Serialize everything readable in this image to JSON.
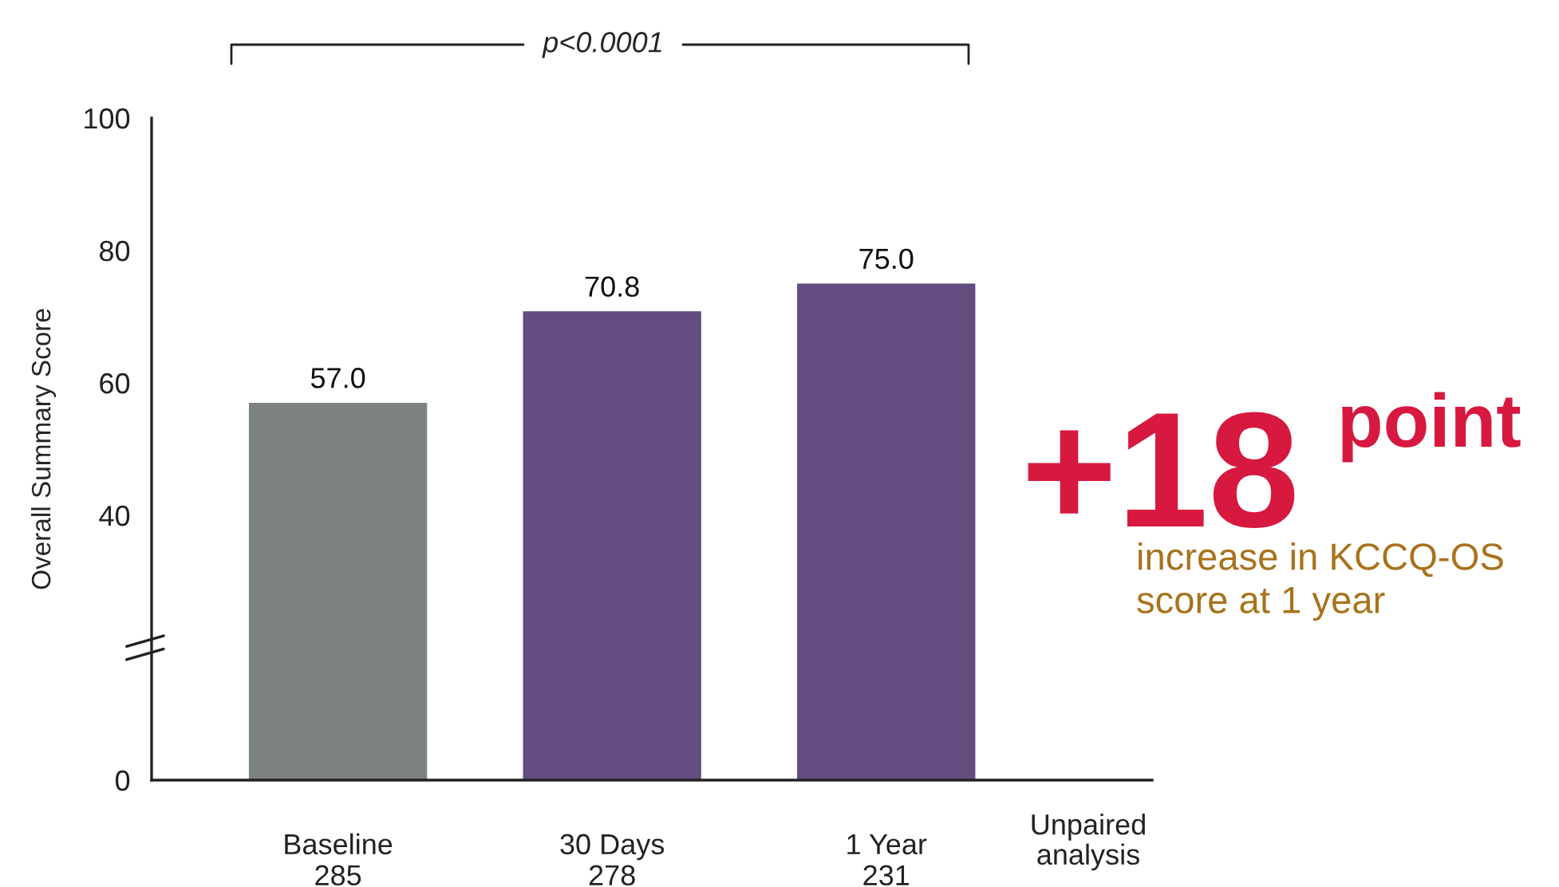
{
  "chart_data": {
    "type": "bar",
    "ylabel": "Overall Summary Score",
    "categories": [
      "Baseline\n285",
      "30 Days\n278",
      "1 Year\n231"
    ],
    "values": [
      57.0,
      70.8,
      75.0
    ],
    "colors": [
      "#7b8280",
      "#634c80",
      "#634c80"
    ],
    "ylim": [
      0,
      100
    ],
    "yticks": [
      0,
      40,
      60,
      80,
      100
    ],
    "data_labels": true,
    "value_labels": [
      "57.0",
      "70.8",
      "75.0"
    ],
    "grid": false,
    "legend": false,
    "annotations": [
      "p<0.0001",
      "+18",
      "point",
      "increase in KCCQ-OS\nscore at 1 year",
      "Unpaired\nanalysis"
    ]
  }
}
